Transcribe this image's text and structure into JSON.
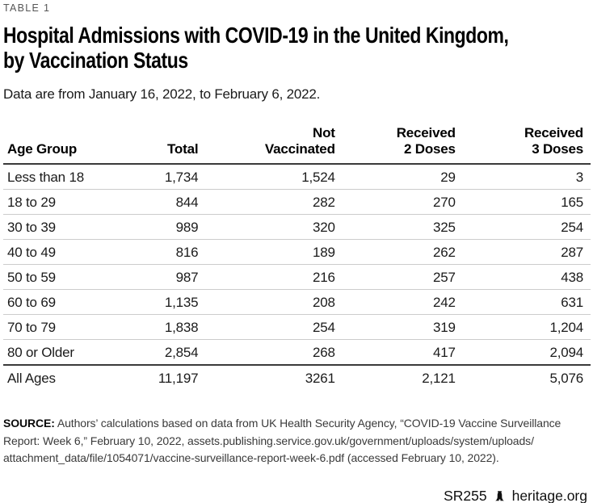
{
  "page": {
    "kicker": "TABLE 1",
    "title": "Hospital Admissions with COVID-19 in the United Kingdom,\nby Vaccination Status",
    "subtitle": "Data are from January 16, 2022, to February 6, 2022."
  },
  "table": {
    "columns": [
      "Age Group",
      "Total",
      "Not\nVaccinated",
      "Received\n2 Doses",
      "Received\n3 Doses"
    ],
    "rows": [
      {
        "cells": [
          "Less than 18",
          "1,734",
          "1,524",
          "29",
          "3"
        ],
        "total": false
      },
      {
        "cells": [
          "18 to 29",
          "844",
          "282",
          "270",
          "165"
        ],
        "total": false
      },
      {
        "cells": [
          "30 to 39",
          "989",
          "320",
          "325",
          "254"
        ],
        "total": false
      },
      {
        "cells": [
          "40 to 49",
          "816",
          "189",
          "262",
          "287"
        ],
        "total": false
      },
      {
        "cells": [
          "50 to 59",
          "987",
          "216",
          "257",
          "438"
        ],
        "total": false
      },
      {
        "cells": [
          "60 to 69",
          "1,135",
          "208",
          "242",
          "631"
        ],
        "total": false
      },
      {
        "cells": [
          "70 to 79",
          "1,838",
          "254",
          "319",
          "1,204"
        ],
        "total": false
      },
      {
        "cells": [
          "80 or Older",
          "2,854",
          "268",
          "417",
          "2,094"
        ],
        "total": false
      },
      {
        "cells": [
          "All Ages",
          "11,197",
          "3261",
          "2,121",
          "5,076"
        ],
        "total": true
      }
    ]
  },
  "source": {
    "label": "SOURCE:",
    "text": " Authors’ calculations based on data from UK Health Security Agency, “COVID-19 Vaccine Surveillance\nReport: Week 6,” February 10, 2022, assets.publishing.service.gov.uk/government/uploads/system/uploads/\nattachment_data/file/1054071/vaccine-surveillance-report-week-6.pdf (accessed February 10, 2022)."
  },
  "footer": {
    "report_id": "SR255",
    "site": "heritage.org",
    "bell_icon": "liberty-bell-icon"
  },
  "colors": {
    "rule_dark": "#3a3a3a",
    "rule_light": "#cccccc",
    "text": "#1b1b1b",
    "kicker": "#565656"
  },
  "chart_data": {
    "type": "table",
    "title": "Hospital Admissions with COVID-19 in the United Kingdom, by Vaccination Status",
    "subtitle": "Data are from January 16, 2022, to February 6, 2022.",
    "columns": [
      "Age Group",
      "Total",
      "Not Vaccinated",
      "Received 2 Doses",
      "Received 3 Doses"
    ],
    "rows": [
      [
        "Less than 18",
        1734,
        1524,
        29,
        3
      ],
      [
        "18 to 29",
        844,
        282,
        270,
        165
      ],
      [
        "30 to 39",
        989,
        320,
        325,
        254
      ],
      [
        "40 to 49",
        816,
        189,
        262,
        287
      ],
      [
        "50 to 59",
        987,
        216,
        257,
        438
      ],
      [
        "60 to 69",
        1135,
        208,
        242,
        631
      ],
      [
        "70 to 79",
        1838,
        254,
        319,
        1204
      ],
      [
        "80 or Older",
        2854,
        268,
        417,
        2094
      ],
      [
        "All Ages",
        11197,
        3261,
        2121,
        5076
      ]
    ],
    "notes": "Total row (All Ages) shown below a heavy rule; body rows separated by light rules."
  }
}
